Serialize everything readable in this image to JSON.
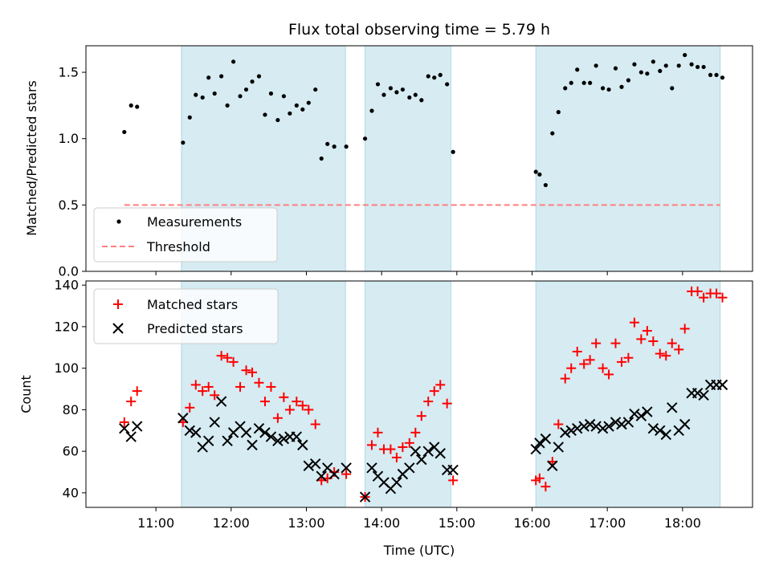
{
  "chart_data": {
    "title": "Flux total observing time = 5.79 h",
    "xlabel": "Time (UTC)",
    "x_unit": "hours UTC",
    "xlim": [
      10.07,
      18.93
    ],
    "x_ticks": [
      11,
      12,
      13,
      14,
      15,
      16,
      17,
      18
    ],
    "x_tick_labels": [
      "11:00",
      "12:00",
      "13:00",
      "14:00",
      "15:00",
      "16:00",
      "17:00",
      "18:00"
    ],
    "shaded_intervals": [
      [
        11.34,
        13.52
      ],
      [
        13.78,
        14.92
      ],
      [
        16.05,
        18.5
      ]
    ],
    "shade_color": "#add8e6",
    "panels": [
      {
        "type": "scatter",
        "ylabel": "Matched/Predicted stars",
        "ylim": [
          0,
          1.7
        ],
        "y_ticks": [
          0,
          0.5,
          1.0,
          1.5
        ],
        "y_tick_labels": [
          "0.0",
          "0.5",
          "1.0",
          "1.5"
        ],
        "legend_position": "lower-left",
        "series": [
          {
            "name": "Measurements",
            "marker": "dot",
            "color": "#000000",
            "x": [
              10.58,
              10.67,
              10.75,
              11.36,
              11.45,
              11.53,
              11.62,
              11.7,
              11.78,
              11.87,
              11.95,
              12.03,
              12.12,
              12.2,
              12.28,
              12.37,
              12.45,
              12.53,
              12.62,
              12.7,
              12.78,
              12.87,
              12.95,
              13.03,
              13.12,
              13.2,
              13.28,
              13.37,
              13.53,
              13.78,
              13.87,
              13.95,
              14.03,
              14.12,
              14.2,
              14.28,
              14.37,
              14.45,
              14.53,
              14.62,
              14.7,
              14.78,
              14.87,
              14.95,
              16.05,
              16.1,
              16.18,
              16.27,
              16.35,
              16.44,
              16.52,
              16.6,
              16.69,
              16.77,
              16.85,
              16.94,
              17.02,
              17.11,
              17.19,
              17.28,
              17.36,
              17.45,
              17.53,
              17.61,
              17.7,
              17.78,
              17.86,
              17.95,
              18.03,
              18.12,
              18.2,
              18.28,
              18.37,
              18.45,
              18.53
            ],
            "y": [
              1.05,
              1.25,
              1.24,
              0.97,
              1.16,
              1.33,
              1.31,
              1.46,
              1.34,
              1.47,
              1.25,
              1.58,
              1.32,
              1.37,
              1.43,
              1.47,
              1.18,
              1.34,
              1.14,
              1.32,
              1.19,
              1.25,
              1.22,
              1.27,
              1.37,
              0.85,
              0.96,
              0.94,
              0.94,
              1.0,
              1.21,
              1.41,
              1.33,
              1.38,
              1.35,
              1.37,
              1.31,
              1.33,
              1.29,
              1.47,
              1.46,
              1.48,
              1.41,
              0.9,
              0.75,
              0.73,
              0.65,
              1.04,
              1.2,
              1.38,
              1.42,
              1.52,
              1.42,
              1.42,
              1.55,
              1.38,
              1.37,
              1.53,
              1.39,
              1.44,
              1.56,
              1.5,
              1.49,
              1.58,
              1.51,
              1.55,
              1.38,
              1.55,
              1.63,
              1.56,
              1.54,
              1.54,
              1.48,
              1.48,
              1.46
            ]
          },
          {
            "name": "Threshold",
            "marker": "dashed-line",
            "color": "#ff7f7f",
            "x": [
              10.58,
              18.5
            ],
            "y": [
              0.5,
              0.5
            ]
          }
        ]
      },
      {
        "type": "scatter",
        "ylabel": "Count",
        "ylim": [
          33,
          142
        ],
        "y_ticks": [
          40,
          60,
          80,
          100,
          120,
          140
        ],
        "y_tick_labels": [
          "40",
          "60",
          "80",
          "100",
          "120",
          "140"
        ],
        "legend_position": "upper-left",
        "series": [
          {
            "name": "Matched stars",
            "marker": "plus",
            "color": "#ff0000",
            "x": [
              10.58,
              10.67,
              10.75,
              11.36,
              11.45,
              11.53,
              11.62,
              11.7,
              11.78,
              11.87,
              11.95,
              12.03,
              12.12,
              12.2,
              12.28,
              12.37,
              12.45,
              12.53,
              12.62,
              12.7,
              12.78,
              12.87,
              12.95,
              13.03,
              13.12,
              13.2,
              13.28,
              13.37,
              13.53,
              13.78,
              13.87,
              13.95,
              14.03,
              14.12,
              14.2,
              14.28,
              14.37,
              14.45,
              14.53,
              14.62,
              14.7,
              14.78,
              14.87,
              14.95,
              16.05,
              16.1,
              16.18,
              16.27,
              16.35,
              16.44,
              16.52,
              16.6,
              16.69,
              16.77,
              16.85,
              16.94,
              17.02,
              17.11,
              17.19,
              17.28,
              17.36,
              17.45,
              17.53,
              17.61,
              17.7,
              17.78,
              17.86,
              17.95,
              18.03,
              18.12,
              18.2,
              18.28,
              18.37,
              18.45,
              18.53
            ],
            "y": [
              74,
              84,
              89,
              74,
              81,
              92,
              89,
              91,
              87,
              106,
              105,
              103,
              91,
              99,
              98,
              93,
              84,
              91,
              76,
              86,
              80,
              84,
              82,
              80,
              73,
              46,
              47,
              50,
              49,
              38,
              63,
              69,
              61,
              61,
              57,
              62,
              64,
              69,
              77,
              84,
              89,
              92,
              83,
              46,
              46,
              47,
              43,
              55,
              73,
              95,
              100,
              108,
              102,
              104,
              112,
              100,
              97,
              112,
              103,
              105,
              122,
              114,
              118,
              113,
              107,
              106,
              112,
              109,
              119,
              137,
              137,
              134,
              136,
              136,
              134
            ]
          },
          {
            "name": "Predicted stars",
            "marker": "cross",
            "color": "#000000",
            "x": [
              10.58,
              10.67,
              10.75,
              11.36,
              11.45,
              11.53,
              11.62,
              11.7,
              11.78,
              11.87,
              11.95,
              12.03,
              12.12,
              12.2,
              12.28,
              12.37,
              12.45,
              12.53,
              12.62,
              12.7,
              12.78,
              12.87,
              12.95,
              13.03,
              13.12,
              13.2,
              13.28,
              13.37,
              13.53,
              13.78,
              13.87,
              13.95,
              14.03,
              14.12,
              14.2,
              14.28,
              14.37,
              14.45,
              14.53,
              14.62,
              14.7,
              14.78,
              14.87,
              14.95,
              16.05,
              16.1,
              16.18,
              16.27,
              16.35,
              16.44,
              16.52,
              16.6,
              16.69,
              16.77,
              16.85,
              16.94,
              17.02,
              17.11,
              17.19,
              17.28,
              17.36,
              17.45,
              17.53,
              17.61,
              17.7,
              17.78,
              17.86,
              17.95,
              18.03,
              18.12,
              18.2,
              18.28,
              18.37,
              18.45,
              18.53
            ],
            "y": [
              71,
              67,
              72,
              76,
              70,
              69,
              62,
              65,
              74,
              84,
              65,
              69,
              72,
              69,
              63,
              71,
              69,
              67,
              65,
              66,
              67,
              67,
              63,
              53,
              54,
              48,
              52,
              49,
              52,
              38,
              52,
              48,
              45,
              42,
              45,
              49,
              52,
              60,
              56,
              60,
              62,
              59,
              51,
              51,
              61,
              64,
              66,
              53,
              62,
              69,
              70,
              71,
              72,
              73,
              72,
              71,
              72,
              74,
              73,
              74,
              78,
              77,
              79,
              71,
              70,
              68,
              81,
              70,
              73,
              88,
              88,
              87,
              92,
              92,
              92
            ]
          }
        ]
      }
    ]
  }
}
